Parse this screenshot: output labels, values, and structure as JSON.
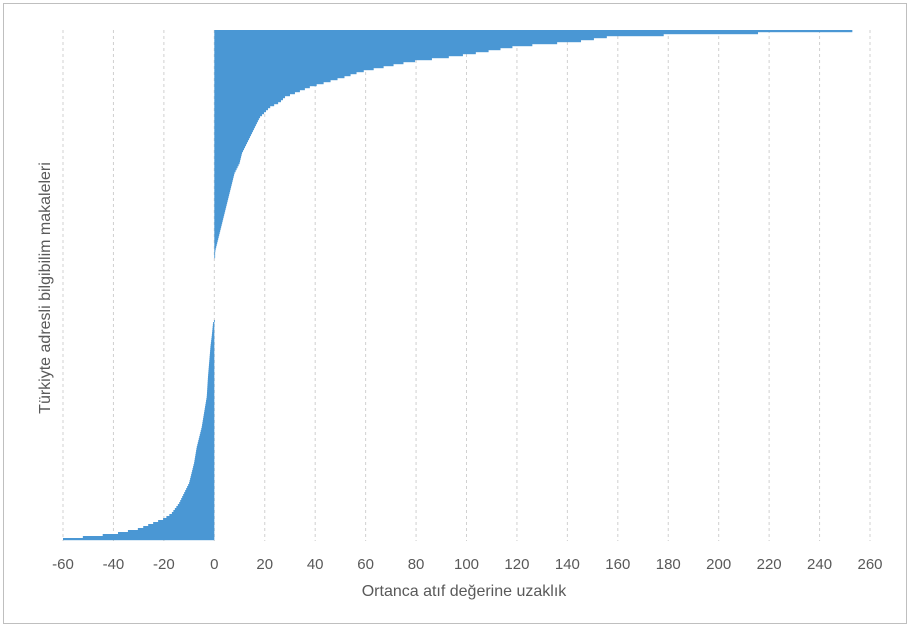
{
  "chart_data": {
    "type": "bar",
    "orientation": "horizontal",
    "xlabel": "Ortanca atıf değerine uzaklık",
    "ylabel": "Türkiyte adresli bilgibilim makaleleri",
    "xlim": [
      -60,
      260
    ],
    "x_ticks": [
      -60,
      -40,
      -20,
      0,
      20,
      40,
      60,
      80,
      100,
      120,
      140,
      160,
      180,
      200,
      220,
      240,
      260
    ],
    "grid": "vertical-dashed",
    "color": "#4a97d4",
    "profile": {
      "description_points": [
        [
          0.0,
          253
        ],
        [
          0.01,
          158
        ],
        [
          0.02,
          145
        ],
        [
          0.03,
          120
        ],
        [
          0.04,
          108
        ],
        [
          0.05,
          95
        ],
        [
          0.06,
          78
        ],
        [
          0.07,
          68
        ],
        [
          0.08,
          58
        ],
        [
          0.09,
          52
        ],
        [
          0.1,
          45
        ],
        [
          0.11,
          38
        ],
        [
          0.12,
          33
        ],
        [
          0.13,
          28
        ],
        [
          0.14,
          26
        ],
        [
          0.15,
          22
        ],
        [
          0.16,
          20
        ],
        [
          0.17,
          18
        ],
        [
          0.18,
          17
        ],
        [
          0.2,
          15
        ],
        [
          0.22,
          13
        ],
        [
          0.24,
          11
        ],
        [
          0.26,
          10
        ],
        [
          0.28,
          8
        ],
        [
          0.3,
          7
        ],
        [
          0.32,
          6
        ],
        [
          0.34,
          5
        ],
        [
          0.36,
          4
        ],
        [
          0.38,
          3
        ],
        [
          0.4,
          2
        ],
        [
          0.42,
          1
        ],
        [
          0.43,
          0.5
        ],
        [
          0.44,
          0.2
        ],
        [
          0.45,
          0
        ],
        [
          0.57,
          0
        ],
        [
          0.575,
          -0.5
        ],
        [
          0.6,
          -1
        ],
        [
          0.62,
          -1.5
        ],
        [
          0.65,
          -2
        ],
        [
          0.68,
          -2.5
        ],
        [
          0.72,
          -3
        ],
        [
          0.75,
          -4
        ],
        [
          0.78,
          -5
        ],
        [
          0.8,
          -6
        ],
        [
          0.82,
          -7
        ],
        [
          0.85,
          -8
        ],
        [
          0.87,
          -9
        ],
        [
          0.89,
          -10
        ],
        [
          0.91,
          -12
        ],
        [
          0.93,
          -14
        ],
        [
          0.95,
          -17
        ],
        [
          0.96,
          -20
        ],
        [
          0.97,
          -25
        ],
        [
          0.98,
          -30
        ],
        [
          0.99,
          -40
        ],
        [
          1.0,
          -60
        ]
      ]
    }
  }
}
